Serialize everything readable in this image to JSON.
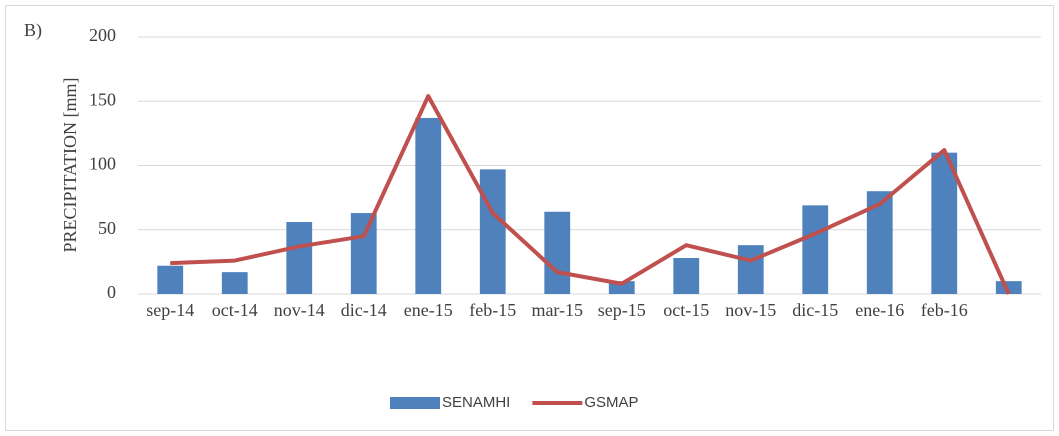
{
  "chart_data": {
    "type": "bar-line",
    "panel_label": "B)",
    "y_label": "PRECIPITATION [mm]",
    "categories": [
      "sep-14",
      "oct-14",
      "nov-14",
      "dic-14",
      "ene-15",
      "feb-15",
      "mar-15",
      "sep-15",
      "oct-15",
      "nov-15",
      "dic-15",
      "ene-16",
      "feb-16",
      null
    ],
    "series": [
      {
        "name": "SENAMHI",
        "kind": "bar",
        "color": "#4f81bd",
        "values": [
          22,
          17,
          56,
          63,
          137,
          97,
          64,
          10,
          28,
          38,
          69,
          80,
          110,
          10
        ]
      },
      {
        "name": "GSMAP",
        "kind": "line",
        "color": "#c0504d",
        "values": [
          24,
          26,
          37,
          45,
          154,
          63,
          17,
          8,
          38,
          26,
          47,
          70,
          112,
          0
        ]
      }
    ],
    "ylim": [
      0,
      200
    ],
    "yticks": [
      0,
      50,
      100,
      150,
      200
    ],
    "grid": true,
    "legend": "bottom"
  }
}
